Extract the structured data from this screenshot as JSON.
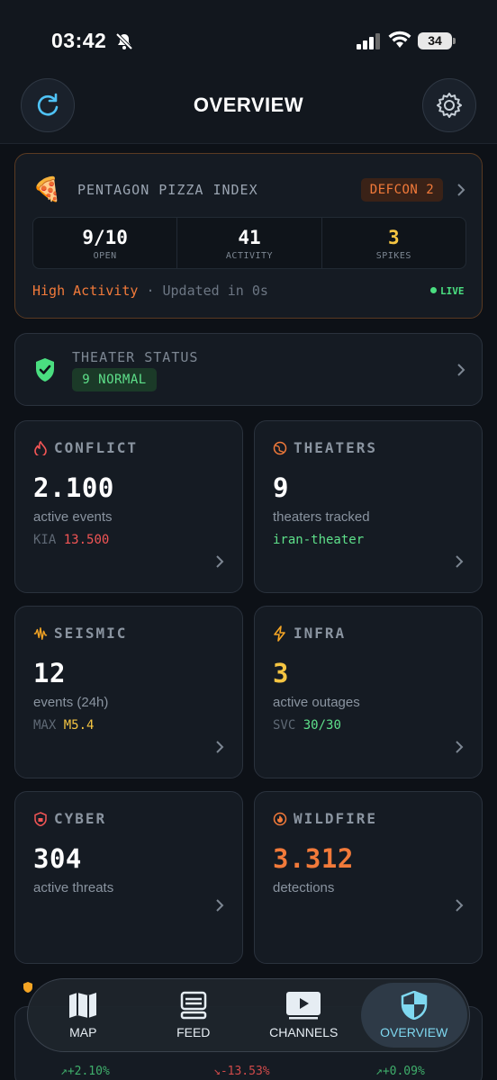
{
  "status_bar": {
    "time": "03:42",
    "battery": "34"
  },
  "header": {
    "title": "OVERVIEW"
  },
  "pizza": {
    "title": "PENTAGON PIZZA INDEX",
    "defcon": "DEFCON 2",
    "stats": [
      {
        "value": "9/10",
        "label": "OPEN",
        "color": "#ffffff"
      },
      {
        "value": "41",
        "label": "ACTIVITY",
        "color": "#ffffff"
      },
      {
        "value": "3",
        "label": "SPIKES",
        "color": "#f5c542"
      }
    ],
    "activity_level": "High Activity",
    "separator": "·",
    "updated": "Updated in 0s",
    "live": "LIVE"
  },
  "theater": {
    "title": "THEATER STATUS",
    "badge": "9 NORMAL"
  },
  "tiles": [
    {
      "title": "CONFLICT",
      "icon": "flame-drop-icon",
      "value": "2.100",
      "value_color": "#ffffff",
      "sub": "active events",
      "meta_label": "KIA",
      "meta_value": "13.500",
      "meta_color": "#f25555"
    },
    {
      "title": "THEATERS",
      "icon": "globe-icon",
      "value": "9",
      "value_color": "#ffffff",
      "sub": "theaters tracked",
      "meta_label": "",
      "meta_value": "iran-theater",
      "meta_color": "#5ee08a"
    },
    {
      "title": "SEISMIC",
      "icon": "waveform-icon",
      "value": "12",
      "value_color": "#ffffff",
      "sub": "events (24h)",
      "meta_label": "MAX",
      "meta_value": "M5.4",
      "meta_color": "#f5c542"
    },
    {
      "title": "INFRA",
      "icon": "bolt-icon",
      "value": "3",
      "value_color": "#f5c542",
      "sub": "active outages",
      "meta_label": "SVC",
      "meta_value": "30/30",
      "meta_color": "#5ee08a"
    },
    {
      "title": "CYBER",
      "icon": "lock-shield-icon",
      "value": "304",
      "value_color": "#ffffff",
      "sub": "active threats",
      "meta_label": "",
      "meta_value": "",
      "meta_color": "#8a94a0"
    },
    {
      "title": "WILDFIRE",
      "icon": "fire-icon",
      "value": "3.312",
      "value_color": "#f27a3a",
      "sub": "detections",
      "meta_label": "",
      "meta_value": "",
      "meta_color": "#8a94a0"
    }
  ],
  "peek": {
    "values": [
      "↗+2.10%",
      "↘-13.53%",
      "↗+0.09%"
    ]
  },
  "nav": [
    {
      "label": "MAP",
      "icon": "map-icon"
    },
    {
      "label": "FEED",
      "icon": "feed-icon"
    },
    {
      "label": "CHANNELS",
      "icon": "play-icon"
    },
    {
      "label": "OVERVIEW",
      "icon": "shield-icon",
      "active": true
    }
  ]
}
